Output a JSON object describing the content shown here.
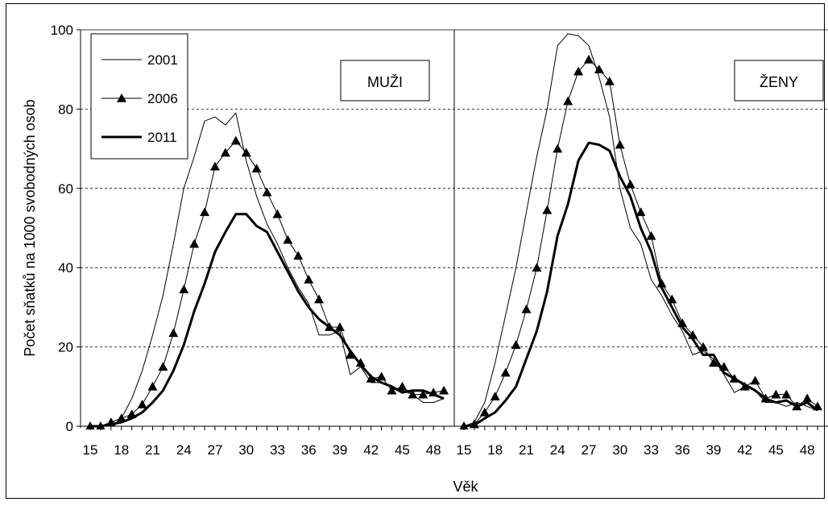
{
  "chart_data": {
    "type": "line",
    "ylabel": "Počet sňatků na 1000 svobodných osob",
    "xlabel": "Věk",
    "ylim": [
      0,
      100
    ],
    "y_ticks": [
      0,
      20,
      40,
      60,
      80,
      100
    ],
    "x_tick_labels": [
      "15",
      "18",
      "21",
      "24",
      "27",
      "30",
      "33",
      "36",
      "39",
      "42",
      "45",
      "48"
    ],
    "grid": "horizontal dashed",
    "legend": {
      "placement": "top-left",
      "entries": [
        {
          "label": "2001",
          "style": "thin"
        },
        {
          "label": "2006",
          "style": "triangle-markers"
        },
        {
          "label": "2011",
          "style": "thick"
        }
      ]
    },
    "panels": [
      {
        "title": "MUŽI",
        "ages": [
          15,
          16,
          17,
          18,
          19,
          20,
          21,
          22,
          23,
          24,
          25,
          26,
          27,
          28,
          29,
          30,
          31,
          32,
          33,
          34,
          35,
          36,
          37,
          38,
          39,
          40,
          41,
          42,
          43,
          44,
          45,
          46,
          47,
          48,
          49
        ],
        "series": [
          {
            "name": "2001",
            "values": [
              0,
              0,
              1,
              2,
              7,
              14,
              23,
              33,
              46,
              60,
              68,
              77,
              78,
              76,
              79,
              67,
              58,
              51,
              46,
              40,
              35,
              31,
              23,
              23,
              24,
              13,
              15,
              11,
              11,
              10,
              9,
              8,
              6,
              6,
              7
            ]
          },
          {
            "name": "2006",
            "values": [
              0,
              0,
              1,
              2,
              3,
              5.5,
              10,
              15,
              23.5,
              34.5,
              46,
              54,
              65.5,
              69,
              72,
              69,
              65,
              59,
              53.5,
              47,
              43,
              37,
              32,
              25,
              25,
              18,
              16,
              12,
              12.5,
              9,
              10,
              8,
              8,
              8.5,
              9
            ]
          },
          {
            "name": "2011",
            "values": [
              0,
              0,
              0.5,
              1,
              2,
              3.5,
              6,
              9,
              14,
              20.5,
              29,
              36,
              44,
              49,
              53.5,
              53.5,
              50.5,
              49,
              44,
              39,
              34,
              30,
              27,
              25,
              23,
              19,
              15.5,
              12.5,
              11,
              10,
              8.5,
              9,
              9,
              8,
              7
            ]
          }
        ]
      },
      {
        "title": "ŽENY",
        "ages": [
          15,
          16,
          17,
          18,
          19,
          20,
          21,
          22,
          23,
          24,
          25,
          26,
          27,
          28,
          29,
          30,
          31,
          32,
          33,
          34,
          35,
          36,
          37,
          38,
          39,
          40,
          41,
          42,
          43,
          44,
          45,
          46,
          47,
          48,
          49
        ],
        "series": [
          {
            "name": "2001",
            "values": [
              0,
              1,
              6,
              16,
              28,
              40,
              54,
              68,
              80,
              96,
              99,
              98.5,
              96,
              88,
              78,
              60,
              50,
              46,
              37,
              33,
              28,
              24,
              18,
              19,
              17,
              13,
              8.5,
              10,
              9,
              6,
              6,
              5,
              6,
              5,
              4
            ]
          },
          {
            "name": "2006",
            "values": [
              0,
              0.5,
              3.5,
              7.5,
              13.5,
              20.5,
              29.5,
              40,
              54.5,
              70,
              82,
              89.5,
              92.5,
              90,
              87,
              71,
              61,
              54,
              48,
              36,
              32,
              26,
              23,
              20,
              16,
              15,
              12,
              10,
              11.5,
              7,
              8,
              8,
              5,
              7,
              5
            ]
          },
          {
            "name": "2011",
            "values": [
              0,
              0.3,
              2,
              3.5,
              6.5,
              10,
              17,
              24,
              34,
              48,
              56,
              67,
              71.5,
              71,
              69.5,
              63,
              58,
              50,
              44,
              35,
              30,
              25,
              22,
              18,
              18,
              13.5,
              12,
              10.5,
              9,
              7,
              6,
              6.5,
              5,
              6,
              4
            ]
          }
        ]
      }
    ]
  }
}
